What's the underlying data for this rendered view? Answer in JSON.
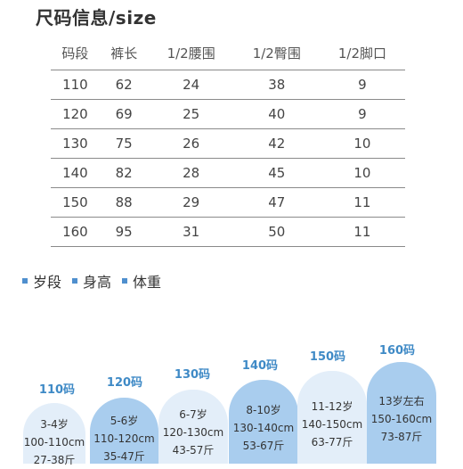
{
  "title": "尺码信息/size",
  "size_table": {
    "headers": [
      "码段",
      "裤长",
      "1/2腰围",
      "1/2臀围",
      "1/2脚口"
    ],
    "rows": [
      [
        "110",
        "62",
        "24",
        "38",
        "9"
      ],
      [
        "120",
        "69",
        "25",
        "40",
        "9"
      ],
      [
        "130",
        "75",
        "26",
        "42",
        "10"
      ],
      [
        "140",
        "82",
        "28",
        "45",
        "10"
      ],
      [
        "150",
        "88",
        "29",
        "47",
        "11"
      ],
      [
        "160",
        "95",
        "31",
        "50",
        "11"
      ]
    ]
  },
  "legend": [
    {
      "label": "岁段",
      "color": "#4f8fce"
    },
    {
      "label": "身高",
      "color": "#4f8fce"
    },
    {
      "label": "体重",
      "color": "#4f8fce"
    }
  ],
  "stages": [
    {
      "code": "110码",
      "age": "3-4岁",
      "height": "100-110cm",
      "weight": "27-38斤",
      "tone": "light"
    },
    {
      "code": "120码",
      "age": "5-6岁",
      "height": "110-120cm",
      "weight": "35-47斤",
      "tone": "dark"
    },
    {
      "code": "130码",
      "age": "6-7岁",
      "height": "120-130cm",
      "weight": "43-57斤",
      "tone": "light"
    },
    {
      "code": "140码",
      "age": "8-10岁",
      "height": "130-140cm",
      "weight": "53-67斤",
      "tone": "dark"
    },
    {
      "code": "150码",
      "age": "11-12岁",
      "height": "140-150cm",
      "weight": "63-77斤",
      "tone": "light"
    },
    {
      "code": "160码",
      "age": "13岁左右",
      "height": "150-160cm",
      "weight": "73-87斤",
      "tone": "dark"
    }
  ]
}
